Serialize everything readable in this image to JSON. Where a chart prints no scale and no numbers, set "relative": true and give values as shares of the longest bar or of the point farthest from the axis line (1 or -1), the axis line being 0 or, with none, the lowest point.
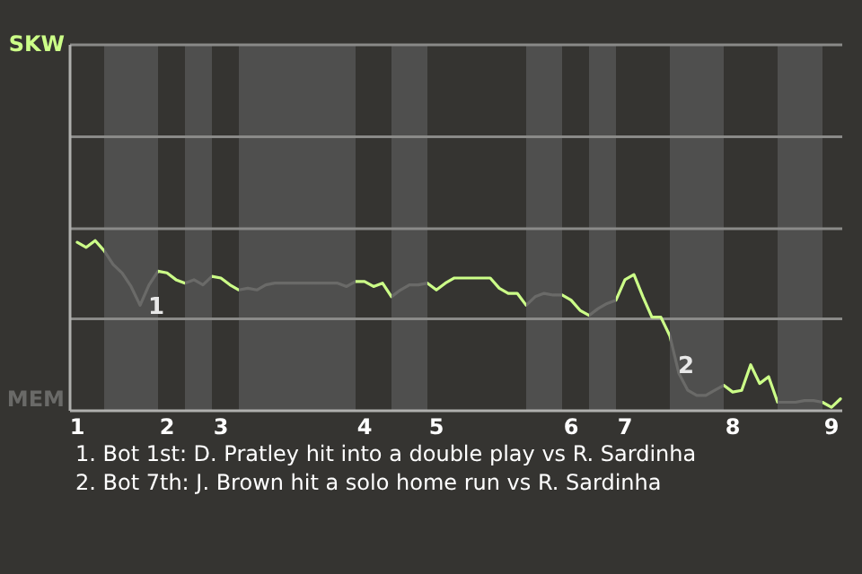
{
  "chart_data": {
    "type": "line",
    "relative": true,
    "categories": [
      "1",
      null,
      null,
      null,
      null,
      null,
      null,
      null,
      null,
      null,
      "2",
      null,
      null,
      null,
      null,
      null,
      "3",
      null,
      null,
      null,
      null,
      null,
      null,
      null,
      null,
      null,
      null,
      null,
      null,
      null,
      null,
      null,
      "4",
      null,
      null,
      null,
      null,
      null,
      null,
      null,
      "5",
      null,
      null,
      null,
      null,
      null,
      null,
      null,
      null,
      null,
      null,
      null,
      null,
      null,
      null,
      "6",
      null,
      null,
      null,
      null,
      null,
      "7",
      null,
      null,
      null,
      null,
      null,
      null,
      null,
      null,
      null,
      null,
      null,
      "8",
      null,
      null,
      null,
      null,
      null,
      null,
      null,
      null,
      null,
      null,
      "9",
      null
    ],
    "series": [
      {
        "color": "#ccff88",
        "values": [
          0.99,
          0.96,
          1,
          0.94,
          0.86,
          0.81,
          0.73,
          0.62,
          0.74,
          0.82,
          0.81,
          0.77,
          0.75,
          0.77,
          0.74,
          0.79,
          0.78,
          0.74,
          0.71,
          0.72,
          0.71,
          0.74,
          0.75,
          0.75,
          0.75,
          0.75,
          0.75,
          0.75,
          0.75,
          0.75,
          0.73,
          0.76,
          0.76,
          0.73,
          0.75,
          0.67,
          0.71,
          0.74,
          0.74,
          0.75,
          0.71,
          0.75,
          0.78,
          0.78,
          0.78,
          0.78,
          0.78,
          0.72,
          0.69,
          0.69,
          0.62,
          0.67,
          0.69,
          0.68,
          0.68,
          0.65,
          0.59,
          0.56,
          0.6,
          0.63,
          0.65,
          0.77,
          0.8,
          0.67,
          0.55,
          0.55,
          0.44,
          0.22,
          0.12,
          0.09,
          0.09,
          0.12,
          0.15,
          0.11,
          0.12,
          0.27,
          0.16,
          0.2,
          0.05,
          0.05,
          0.05,
          0.06,
          0.06,
          0.05,
          0.02,
          0.07
        ],
        "colors": [
          "#ccff88",
          "#ccff88",
          "#ccff88",
          "#6a6a68",
          "#6a6a68",
          "#6a6a68",
          "#6a6a68",
          "#6a6a68",
          "#6a6a68",
          "#ccff88",
          "#ccff88",
          "#ccff88",
          "#6a6a68",
          "#6a6a68",
          "#6a6a68",
          "#ccff88",
          "#ccff88",
          "#ccff88",
          "#6a6a68",
          "#6a6a68",
          "#6a6a68",
          "#6a6a68",
          "#6a6a68",
          "#6a6a68",
          "#6a6a68",
          "#6a6a68",
          "#6a6a68",
          "#6a6a68",
          "#6a6a68",
          "#6a6a68",
          "#6a6a68",
          "#ccff88",
          "#ccff88",
          "#ccff88",
          "#ccff88",
          "#6a6a68",
          "#6a6a68",
          "#6a6a68",
          "#6a6a68",
          "#ccff88",
          "#ccff88",
          "#ccff88",
          "#ccff88",
          "#ccff88",
          "#ccff88",
          "#ccff88",
          "#ccff88",
          "#ccff88",
          "#ccff88",
          "#ccff88",
          "#6a6a68",
          "#6a6a68",
          "#6a6a68",
          "#6a6a68",
          "#ccff88",
          "#ccff88",
          "#ccff88",
          "#6a6a68",
          "#6a6a68",
          "#6a6a68",
          "#ccff88",
          "#ccff88",
          "#ccff88",
          "#ccff88",
          "#ccff88",
          "#ccff88",
          "#6a6a68",
          "#6a6a68",
          "#6a6a68",
          "#6a6a68",
          "#6a6a68",
          "#6a6a68",
          "#ccff88",
          "#ccff88",
          "#ccff88",
          "#ccff88",
          "#ccff88",
          "#ccff88",
          "#6a6a68",
          "#6a6a68",
          "#6a6a68",
          "#6a6a68",
          "#6a6a68",
          "#ccff88",
          "#ccff88",
          "#ccff88"
        ]
      }
    ],
    "ref_lines": [
      {
        "axis": "y",
        "value": 2.15,
        "color": "#8a8a88"
      },
      {
        "axis": "y",
        "value": 1.61,
        "color": "#8a8a88"
      },
      {
        "axis": "y",
        "value": 1.07,
        "color": "#8a8a88"
      },
      {
        "axis": "y",
        "value": 0.54,
        "color": "#8a8a88"
      }
    ],
    "annotations": [
      "SKW",
      "MEM",
      "1",
      "2",
      "1. Bot 1st: D. Pratley hit into a double play vs R. Sardinha",
      "2. Bot 7th: J. Brown hit a solo home run vs R. Sardinha"
    ]
  }
}
